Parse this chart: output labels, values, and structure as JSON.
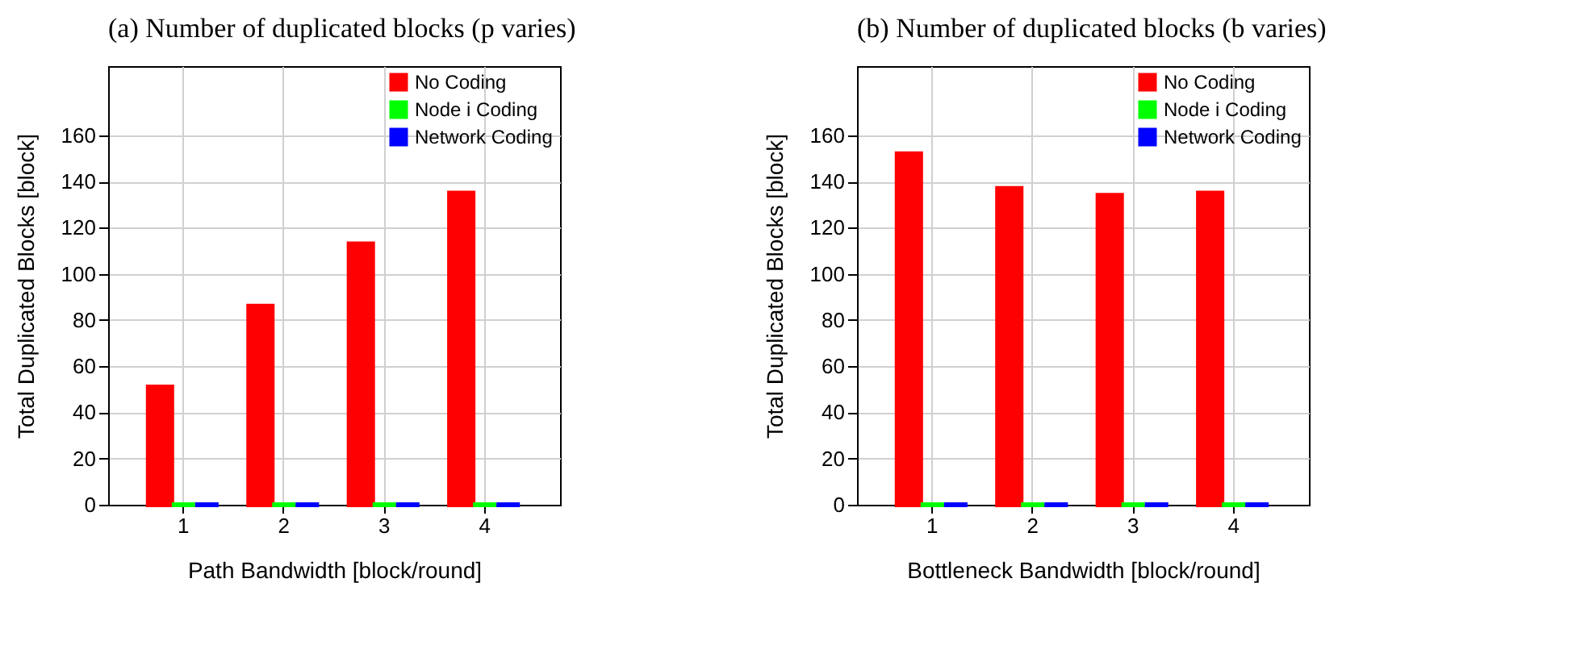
{
  "chart_data": [
    {
      "type": "bar",
      "title": "(a)  Number of duplicated blocks (p varies)",
      "xlabel": "Path Bandwidth [block/round]",
      "ylabel": "Total Duplicated Blocks [block]",
      "categories": [
        "1",
        "2",
        "3",
        "4"
      ],
      "series": [
        {
          "name": "No Coding",
          "color": "#ff0000",
          "values": [
            51,
            86,
            113,
            135
          ]
        },
        {
          "name": "Node i Coding",
          "color": "#00ff00",
          "values": [
            0,
            0,
            0,
            0
          ]
        },
        {
          "name": "Network Coding",
          "color": "#0000ff",
          "values": [
            0,
            0,
            0,
            0
          ]
        }
      ],
      "ylim": [
        0,
        190
      ],
      "yticks": [
        0,
        20,
        40,
        60,
        80,
        100,
        120,
        140,
        160
      ],
      "grid": true,
      "legend": "top right"
    },
    {
      "type": "bar",
      "title": "(b)  Number of duplicated blocks (b varies)",
      "xlabel": "Bottleneck Bandwidth [block/round]",
      "ylabel": "Total Duplicated Blocks [block]",
      "categories": [
        "1",
        "2",
        "3",
        "4"
      ],
      "series": [
        {
          "name": "No Coding",
          "color": "#ff0000",
          "values": [
            152,
            137,
            134,
            135
          ]
        },
        {
          "name": "Node i Coding",
          "color": "#00ff00",
          "values": [
            0,
            0,
            0,
            0
          ]
        },
        {
          "name": "Network Coding",
          "color": "#0000ff",
          "values": [
            0,
            0,
            0,
            0
          ]
        }
      ],
      "ylim": [
        0,
        190
      ],
      "yticks": [
        0,
        20,
        40,
        60,
        80,
        100,
        120,
        140,
        160
      ],
      "grid": true,
      "legend": "top right"
    }
  ]
}
